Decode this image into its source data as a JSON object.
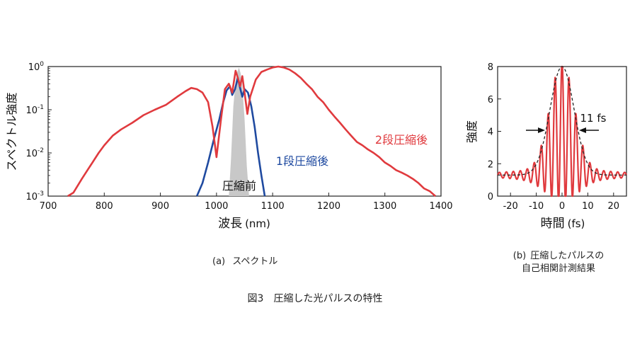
{
  "chart_data": [
    {
      "type": "line",
      "panel_label": "(a)",
      "caption": "スペクトル",
      "xlabel": "波長",
      "xunit": "(nm)",
      "ylabel": "スペクトル強度",
      "xlim": [
        700,
        1400
      ],
      "ylim_log10": [
        -3,
        0
      ],
      "yscale": "log",
      "xticks": [
        "700",
        "800",
        "900",
        "1000",
        "1100",
        "1200",
        "1300",
        "1400"
      ],
      "yticks": [
        {
          "base": "10",
          "exp": "-3"
        },
        {
          "base": "10",
          "exp": "-2"
        },
        {
          "base": "10",
          "exp": "-1"
        },
        {
          "base": "10",
          "exp": "0"
        }
      ],
      "annotations": [
        "圧縮前",
        "1段圧縮後",
        "2段圧縮後"
      ],
      "series": [
        {
          "name": "2段圧縮後",
          "color": "#e03a3e",
          "x": [
            735,
            745,
            760,
            775,
            790,
            800,
            815,
            830,
            850,
            870,
            890,
            910,
            930,
            945,
            955,
            965,
            975,
            985,
            993,
            1000,
            1008,
            1015,
            1022,
            1028,
            1034,
            1038,
            1042,
            1046,
            1050,
            1055,
            1060,
            1070,
            1080,
            1090,
            1100,
            1110,
            1120,
            1130,
            1140,
            1150,
            1160,
            1170,
            1180,
            1190,
            1200,
            1210,
            1220,
            1230,
            1240,
            1250,
            1260,
            1270,
            1280,
            1290,
            1300,
            1310,
            1320,
            1330,
            1340,
            1350,
            1360,
            1370,
            1380,
            1390
          ],
          "y": [
            0.001,
            0.0012,
            0.0025,
            0.005,
            0.01,
            0.015,
            0.025,
            0.035,
            0.05,
            0.075,
            0.1,
            0.13,
            0.2,
            0.27,
            0.32,
            0.3,
            0.25,
            0.15,
            0.04,
            0.008,
            0.06,
            0.3,
            0.4,
            0.25,
            0.8,
            0.55,
            0.35,
            0.6,
            0.25,
            0.08,
            0.2,
            0.5,
            0.75,
            0.85,
            0.95,
            1.0,
            0.95,
            0.85,
            0.7,
            0.55,
            0.4,
            0.3,
            0.2,
            0.15,
            0.1,
            0.07,
            0.05,
            0.035,
            0.025,
            0.018,
            0.015,
            0.012,
            0.01,
            0.008,
            0.006,
            0.005,
            0.004,
            0.0035,
            0.003,
            0.0025,
            0.002,
            0.0015,
            0.0013,
            0.001
          ]
        },
        {
          "name": "1段圧縮後",
          "color": "#1f4aa0",
          "x": [
            965,
            975,
            985,
            995,
            1005,
            1012,
            1018,
            1024,
            1028,
            1033,
            1038,
            1042,
            1046,
            1050,
            1056,
            1062,
            1068,
            1074,
            1080,
            1086
          ],
          "y": [
            0.001,
            0.002,
            0.006,
            0.02,
            0.06,
            0.15,
            0.28,
            0.35,
            0.22,
            0.3,
            0.55,
            0.32,
            0.2,
            0.3,
            0.25,
            0.12,
            0.04,
            0.01,
            0.003,
            0.001
          ]
        },
        {
          "name": "圧縮前",
          "color": "#c8c8c8",
          "x": [
            1022,
            1026,
            1030,
            1034,
            1037,
            1040,
            1043,
            1046,
            1050,
            1054,
            1058
          ],
          "y": [
            0.001,
            0.008,
            0.12,
            0.45,
            0.75,
            0.95,
            0.7,
            0.35,
            0.06,
            0.005,
            0.001
          ]
        }
      ]
    },
    {
      "type": "line",
      "panel_label": "(b)",
      "caption": "圧縮したパルスの自己相関計測結果",
      "caption_lines": [
        "圧縮したパルスの",
        "自己相関計測結果"
      ],
      "xlabel": "時間",
      "xunit": "(fs)",
      "ylabel": "強度",
      "xlim": [
        -25,
        25
      ],
      "ylim": [
        0,
        8
      ],
      "xticks": [
        "-20",
        "-10",
        "0",
        "10",
        "20"
      ],
      "yticks": [
        "0",
        "2",
        "4",
        "6",
        "8"
      ],
      "annotation": "11 fs",
      "fwhm_fs": 11,
      "series": [
        {
          "name": "",
          "color": "#e03a3e",
          "style": "solid",
          "model": "interferometric",
          "baseline": 1.3,
          "peak": 8,
          "period_fs": 2.7
        },
        {
          "name": "",
          "color": "#222222",
          "style": "dashed",
          "model": "envelope",
          "baseline": 1.3,
          "peak": 8
        }
      ]
    }
  ],
  "figure_caption": "図3　圧縮した光パルスの特性"
}
